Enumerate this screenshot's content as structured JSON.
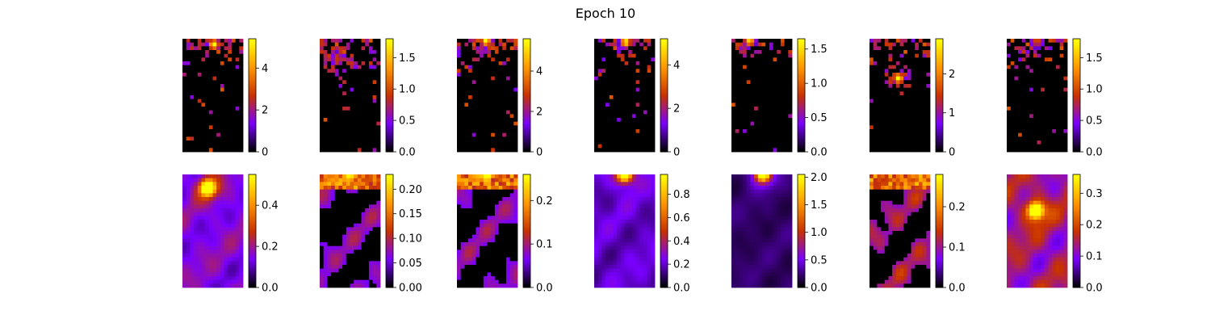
{
  "title": "Epoch 10",
  "colormap": "gnuplot",
  "colormap_stops": [
    "#000000",
    "#7a00ff",
    "#c83200",
    "#ff9600",
    "#ffff00"
  ],
  "chart_data": [
    {
      "type": "heatmap",
      "row": 1,
      "col": 1,
      "pattern": "sparse",
      "hotspot": [
        0.52,
        0.05,
        1.0
      ],
      "density": 0.45,
      "vmin": 0,
      "vmax": 5.4,
      "colorbar_ticks": [
        "0",
        "2",
        "4"
      ],
      "colorbar_tick_values": [
        0,
        2,
        4
      ]
    },
    {
      "type": "heatmap",
      "row": 1,
      "col": 2,
      "pattern": "sparse",
      "hotspot": [
        0.3,
        0.18,
        0.4
      ],
      "density": 0.65,
      "vmin": 0,
      "vmax": 1.8,
      "colorbar_ticks": [
        "0.0",
        "0.5",
        "1.0",
        "1.5"
      ],
      "colorbar_tick_values": [
        0,
        0.5,
        1.0,
        1.5
      ]
    },
    {
      "type": "heatmap",
      "row": 1,
      "col": 3,
      "pattern": "sparse",
      "hotspot": [
        0.48,
        0.02,
        1.0
      ],
      "density": 0.45,
      "vmin": 0,
      "vmax": 5.6,
      "colorbar_ticks": [
        "0",
        "2",
        "4"
      ],
      "colorbar_tick_values": [
        0,
        2,
        4
      ]
    },
    {
      "type": "heatmap",
      "row": 1,
      "col": 4,
      "pattern": "sparse",
      "hotspot": [
        0.52,
        0.03,
        1.0
      ],
      "density": 0.4,
      "vmin": 0,
      "vmax": 5.2,
      "colorbar_ticks": [
        "0",
        "2",
        "4"
      ],
      "colorbar_tick_values": [
        0,
        2,
        4
      ]
    },
    {
      "type": "heatmap",
      "row": 1,
      "col": 5,
      "pattern": "sparse",
      "hotspot": [
        0.3,
        0.02,
        0.9
      ],
      "density": 0.2,
      "vmin": 0,
      "vmax": 1.65,
      "colorbar_ticks": [
        "0.0",
        "0.5",
        "1.0",
        "1.5"
      ],
      "colorbar_tick_values": [
        0,
        0.5,
        1.0,
        1.5
      ]
    },
    {
      "type": "heatmap",
      "row": 1,
      "col": 6,
      "pattern": "sparse",
      "hotspot": [
        0.48,
        0.35,
        1.0
      ],
      "density": 0.4,
      "vmin": 0,
      "vmax": 2.9,
      "colorbar_ticks": [
        "0",
        "1",
        "2"
      ],
      "colorbar_tick_values": [
        0,
        1,
        2
      ]
    },
    {
      "type": "heatmap",
      "row": 1,
      "col": 7,
      "pattern": "sparse",
      "hotspot": [
        0.5,
        0.02,
        0.5
      ],
      "density": 0.35,
      "vmin": 0,
      "vmax": 1.8,
      "colorbar_ticks": [
        "0.0",
        "0.5",
        "1.0",
        "1.5"
      ],
      "colorbar_tick_values": [
        0,
        0.5,
        1.0,
        1.5
      ]
    },
    {
      "type": "heatmap",
      "row": 2,
      "col": 1,
      "pattern": "smooth",
      "hotspot": [
        0.42,
        0.12,
        1.0
      ],
      "base": 0.28,
      "vmin": 0,
      "vmax": 0.55,
      "colorbar_ticks": [
        "0.0",
        "0.2",
        "0.4"
      ],
      "colorbar_tick_values": [
        0,
        0.2,
        0.4
      ]
    },
    {
      "type": "heatmap",
      "row": 2,
      "col": 2,
      "pattern": "patchy",
      "hotspot": [
        0.5,
        0.0,
        0.8
      ],
      "base": 0.2,
      "vmin": 0,
      "vmax": 0.23,
      "colorbar_ticks": [
        "0.00",
        "0.05",
        "0.10",
        "0.15",
        "0.20"
      ],
      "colorbar_tick_values": [
        0,
        0.05,
        0.1,
        0.15,
        0.2
      ]
    },
    {
      "type": "heatmap",
      "row": 2,
      "col": 3,
      "pattern": "patchy",
      "hotspot": [
        0.5,
        0.0,
        0.9
      ],
      "base": 0.2,
      "vmin": 0,
      "vmax": 0.26,
      "colorbar_ticks": [
        "0.0",
        "0.1",
        "0.2"
      ],
      "colorbar_tick_values": [
        0,
        0.1,
        0.2
      ]
    },
    {
      "type": "heatmap",
      "row": 2,
      "col": 4,
      "pattern": "smooth",
      "hotspot": [
        0.5,
        0.0,
        1.0
      ],
      "base": 0.2,
      "vmin": 0,
      "vmax": 0.97,
      "colorbar_ticks": [
        "0.0",
        "0.2",
        "0.4",
        "0.6",
        "0.8"
      ],
      "colorbar_tick_values": [
        0,
        0.2,
        0.4,
        0.6,
        0.8
      ]
    },
    {
      "type": "heatmap",
      "row": 2,
      "col": 5,
      "pattern": "smooth",
      "hotspot": [
        0.52,
        0.0,
        1.0
      ],
      "base": 0.1,
      "vmin": 0,
      "vmax": 2.05,
      "colorbar_ticks": [
        "0.0",
        "0.5",
        "1.0",
        "1.5",
        "2.0"
      ],
      "colorbar_tick_values": [
        0,
        0.5,
        1.0,
        1.5,
        2.0
      ]
    },
    {
      "type": "heatmap",
      "row": 2,
      "col": 6,
      "pattern": "patchy",
      "hotspot": [
        0.5,
        0.0,
        0.8
      ],
      "base": 0.25,
      "vmin": 0,
      "vmax": 0.28,
      "colorbar_ticks": [
        "0.0",
        "0.1",
        "0.2"
      ],
      "colorbar_tick_values": [
        0,
        0.1,
        0.2
      ]
    },
    {
      "type": "heatmap",
      "row": 2,
      "col": 7,
      "pattern": "smooth",
      "hotspot": [
        0.48,
        0.32,
        1.0
      ],
      "base": 0.38,
      "vmin": 0,
      "vmax": 0.36,
      "colorbar_ticks": [
        "0.0",
        "0.1",
        "0.2",
        "0.3"
      ],
      "colorbar_tick_values": [
        0,
        0.1,
        0.2,
        0.3
      ]
    }
  ]
}
